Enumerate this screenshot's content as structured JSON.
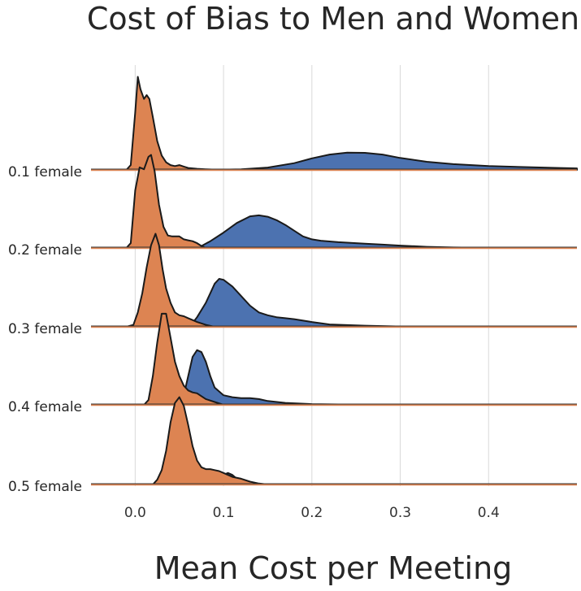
{
  "chart_data": {
    "type": "ridgeline",
    "title": "Cost of Bias to Men and Women",
    "xlabel": "Mean Cost per Meeting",
    "ylabel": "",
    "xlim": [
      -0.05,
      0.5
    ],
    "x_ticks": [
      "0.0",
      "0.1",
      "0.2",
      "0.3",
      "0.4"
    ],
    "x_tick_values": [
      0.0,
      0.1,
      0.2,
      0.3,
      0.4
    ],
    "grid": "vertical",
    "colors": {
      "orange": "#dd8452",
      "blue": "#4c72b0",
      "outline": "#1a1a1a"
    },
    "rows": [
      {
        "label": "0.1 female",
        "orange": [
          [
            -0.01,
            0
          ],
          [
            -0.005,
            0.05
          ],
          [
            0,
            0.6
          ],
          [
            0.003,
            0.97
          ],
          [
            0.006,
            0.84
          ],
          [
            0.01,
            0.74
          ],
          [
            0.013,
            0.78
          ],
          [
            0.016,
            0.74
          ],
          [
            0.02,
            0.55
          ],
          [
            0.025,
            0.3
          ],
          [
            0.03,
            0.15
          ],
          [
            0.035,
            0.08
          ],
          [
            0.04,
            0.05
          ],
          [
            0.045,
            0.04
          ],
          [
            0.05,
            0.05
          ],
          [
            0.055,
            0.035
          ],
          [
            0.06,
            0.02
          ],
          [
            0.07,
            0.012
          ],
          [
            0.08,
            0.007
          ],
          [
            0.09,
            0.003
          ],
          [
            0.1,
            0.002
          ],
          [
            0.11,
            0
          ]
        ],
        "blue": [
          [
            0.05,
            0
          ],
          [
            0.08,
            0.002
          ],
          [
            0.1,
            0.003
          ],
          [
            0.12,
            0.006
          ],
          [
            0.15,
            0.025
          ],
          [
            0.18,
            0.07
          ],
          [
            0.2,
            0.12
          ],
          [
            0.22,
            0.16
          ],
          [
            0.24,
            0.18
          ],
          [
            0.26,
            0.178
          ],
          [
            0.28,
            0.16
          ],
          [
            0.3,
            0.125
          ],
          [
            0.33,
            0.085
          ],
          [
            0.36,
            0.06
          ],
          [
            0.4,
            0.04
          ],
          [
            0.44,
            0.03
          ],
          [
            0.48,
            0.02
          ],
          [
            0.5,
            0.016
          ]
        ]
      },
      {
        "label": "0.2 female",
        "orange": [
          [
            -0.01,
            0
          ],
          [
            -0.005,
            0.05
          ],
          [
            0,
            0.6
          ],
          [
            0.005,
            0.84
          ],
          [
            0.01,
            0.82
          ],
          [
            0.015,
            0.95
          ],
          [
            0.018,
            0.97
          ],
          [
            0.022,
            0.8
          ],
          [
            0.027,
            0.45
          ],
          [
            0.032,
            0.22
          ],
          [
            0.037,
            0.13
          ],
          [
            0.042,
            0.12
          ],
          [
            0.05,
            0.12
          ],
          [
            0.055,
            0.09
          ],
          [
            0.06,
            0.08
          ],
          [
            0.065,
            0.07
          ],
          [
            0.07,
            0.05
          ],
          [
            0.075,
            0.02
          ],
          [
            0.08,
            0
          ]
        ],
        "blue": [
          [
            0.06,
            0
          ],
          [
            0.075,
            0.02
          ],
          [
            0.085,
            0.07
          ],
          [
            0.1,
            0.16
          ],
          [
            0.115,
            0.26
          ],
          [
            0.13,
            0.33
          ],
          [
            0.14,
            0.34
          ],
          [
            0.15,
            0.325
          ],
          [
            0.16,
            0.29
          ],
          [
            0.17,
            0.24
          ],
          [
            0.18,
            0.18
          ],
          [
            0.19,
            0.12
          ],
          [
            0.2,
            0.09
          ],
          [
            0.21,
            0.075
          ],
          [
            0.23,
            0.06
          ],
          [
            0.26,
            0.045
          ],
          [
            0.28,
            0.035
          ],
          [
            0.3,
            0.025
          ],
          [
            0.33,
            0.012
          ],
          [
            0.36,
            0.005
          ],
          [
            0.4,
            0.001
          ],
          [
            0.45,
            0
          ]
        ]
      },
      {
        "label": "0.3 female",
        "orange": [
          [
            -0.01,
            0
          ],
          [
            -0.002,
            0.02
          ],
          [
            0.003,
            0.15
          ],
          [
            0.008,
            0.35
          ],
          [
            0.013,
            0.62
          ],
          [
            0.018,
            0.85
          ],
          [
            0.023,
            0.97
          ],
          [
            0.027,
            0.85
          ],
          [
            0.031,
            0.6
          ],
          [
            0.035,
            0.4
          ],
          [
            0.04,
            0.25
          ],
          [
            0.045,
            0.15
          ],
          [
            0.05,
            0.12
          ],
          [
            0.055,
            0.11
          ],
          [
            0.06,
            0.09
          ],
          [
            0.065,
            0.07
          ],
          [
            0.07,
            0.05
          ],
          [
            0.08,
            0.02
          ],
          [
            0.09,
            0
          ]
        ],
        "blue": [
          [
            0.06,
            0
          ],
          [
            0.065,
            0.04
          ],
          [
            0.07,
            0.1
          ],
          [
            0.08,
            0.25
          ],
          [
            0.085,
            0.35
          ],
          [
            0.09,
            0.45
          ],
          [
            0.095,
            0.5
          ],
          [
            0.1,
            0.49
          ],
          [
            0.11,
            0.42
          ],
          [
            0.12,
            0.32
          ],
          [
            0.13,
            0.22
          ],
          [
            0.14,
            0.15
          ],
          [
            0.15,
            0.12
          ],
          [
            0.16,
            0.1
          ],
          [
            0.17,
            0.09
          ],
          [
            0.18,
            0.08
          ],
          [
            0.2,
            0.05
          ],
          [
            0.22,
            0.025
          ],
          [
            0.26,
            0.012
          ],
          [
            0.3,
            0.003
          ],
          [
            0.35,
            0
          ]
        ]
      },
      {
        "label": "0.4 female",
        "orange": [
          [
            0.01,
            0
          ],
          [
            0.015,
            0.05
          ],
          [
            0.02,
            0.3
          ],
          [
            0.025,
            0.65
          ],
          [
            0.03,
            0.95
          ],
          [
            0.035,
            0.95
          ],
          [
            0.04,
            0.7
          ],
          [
            0.045,
            0.45
          ],
          [
            0.05,
            0.3
          ],
          [
            0.055,
            0.2
          ],
          [
            0.06,
            0.15
          ],
          [
            0.065,
            0.13
          ],
          [
            0.07,
            0.12
          ],
          [
            0.08,
            0.06
          ],
          [
            0.09,
            0.03
          ],
          [
            0.1,
            0
          ]
        ],
        "blue": [
          [
            0.05,
            0
          ],
          [
            0.055,
            0.1
          ],
          [
            0.06,
            0.3
          ],
          [
            0.065,
            0.5
          ],
          [
            0.07,
            0.57
          ],
          [
            0.075,
            0.55
          ],
          [
            0.08,
            0.45
          ],
          [
            0.085,
            0.3
          ],
          [
            0.09,
            0.18
          ],
          [
            0.1,
            0.1
          ],
          [
            0.11,
            0.08
          ],
          [
            0.12,
            0.07
          ],
          [
            0.13,
            0.07
          ],
          [
            0.14,
            0.06
          ],
          [
            0.15,
            0.04
          ],
          [
            0.17,
            0.02
          ],
          [
            0.2,
            0.008
          ],
          [
            0.25,
            0.002
          ],
          [
            0.3,
            0
          ]
        ]
      },
      {
        "label": "0.5 female",
        "orange": [
          [
            0.02,
            0
          ],
          [
            0.025,
            0.05
          ],
          [
            0.03,
            0.15
          ],
          [
            0.035,
            0.35
          ],
          [
            0.04,
            0.65
          ],
          [
            0.045,
            0.85
          ],
          [
            0.05,
            0.91
          ],
          [
            0.055,
            0.82
          ],
          [
            0.06,
            0.62
          ],
          [
            0.065,
            0.4
          ],
          [
            0.07,
            0.25
          ],
          [
            0.075,
            0.18
          ],
          [
            0.08,
            0.16
          ],
          [
            0.085,
            0.16
          ],
          [
            0.09,
            0.15
          ],
          [
            0.095,
            0.14
          ],
          [
            0.1,
            0.12
          ],
          [
            0.11,
            0.08
          ],
          [
            0.12,
            0.06
          ],
          [
            0.13,
            0.03
          ],
          [
            0.14,
            0.01
          ],
          [
            0.15,
            0
          ]
        ],
        "blue": [
          [
            0.09,
            0
          ],
          [
            0.095,
            0.05
          ],
          [
            0.1,
            0.1
          ],
          [
            0.105,
            0.12
          ],
          [
            0.11,
            0.1
          ],
          [
            0.115,
            0.06
          ],
          [
            0.12,
            0
          ]
        ]
      }
    ]
  }
}
